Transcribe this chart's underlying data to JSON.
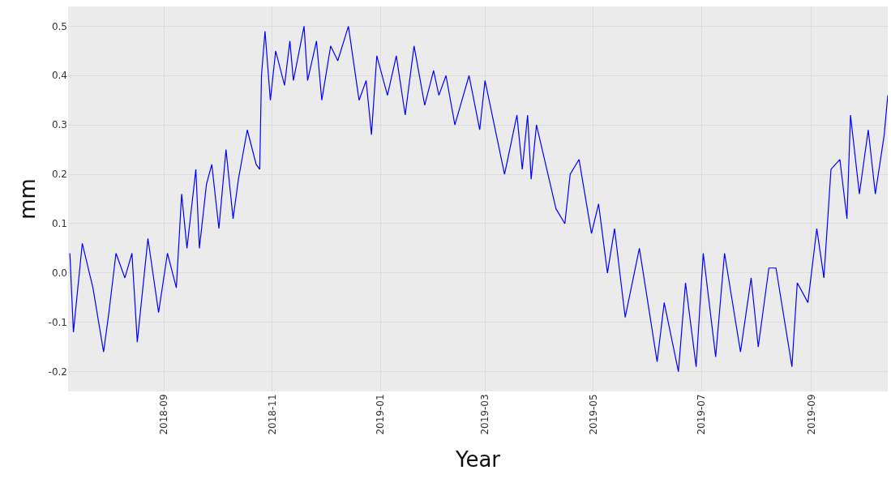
{
  "chart_data": {
    "type": "line",
    "xlabel": "Year",
    "ylabel": "mm",
    "x": [
      "2018-07-10",
      "2018-07-12",
      "2018-07-17",
      "2018-07-23",
      "2018-07-29",
      "2018-08-01",
      "2018-08-05",
      "2018-08-10",
      "2018-08-14",
      "2018-08-17",
      "2018-08-23",
      "2018-08-29",
      "2018-09-03",
      "2018-09-08",
      "2018-09-11",
      "2018-09-14",
      "2018-09-19",
      "2018-09-21",
      "2018-09-25",
      "2018-09-28",
      "2018-10-02",
      "2018-10-06",
      "2018-10-10",
      "2018-10-13",
      "2018-10-18",
      "2018-10-23",
      "2018-10-25",
      "2018-10-26",
      "2018-10-28",
      "2018-10-31",
      "2018-11-03",
      "2018-11-08",
      "2018-11-11",
      "2018-11-13",
      "2018-11-19",
      "2018-11-21",
      "2018-11-26",
      "2018-11-29",
      "2018-12-04",
      "2018-12-08",
      "2018-12-14",
      "2018-12-20",
      "2018-12-24",
      "2018-12-27",
      "2018-12-30",
      "2019-01-05",
      "2019-01-10",
      "2019-01-15",
      "2019-01-20",
      "2019-01-26",
      "2019-01-31",
      "2019-02-03",
      "2019-02-07",
      "2019-02-12",
      "2019-02-20",
      "2019-02-26",
      "2019-03-01",
      "2019-03-12",
      "2019-03-19",
      "2019-03-22",
      "2019-03-25",
      "2019-03-27",
      "2019-03-30",
      "2019-04-10",
      "2019-04-15",
      "2019-04-18",
      "2019-04-23",
      "2019-04-30",
      "2019-05-04",
      "2019-05-09",
      "2019-05-13",
      "2019-05-19",
      "2019-05-27",
      "2019-06-06",
      "2019-06-10",
      "2019-06-18",
      "2019-06-22",
      "2019-06-28",
      "2019-07-02",
      "2019-07-09",
      "2019-07-14",
      "2019-07-23",
      "2019-07-29",
      "2019-08-02",
      "2019-08-08",
      "2019-08-12",
      "2019-08-21",
      "2019-08-24",
      "2019-08-30",
      "2019-09-04",
      "2019-09-08",
      "2019-09-12",
      "2019-09-17",
      "2019-09-21",
      "2019-09-23",
      "2019-09-28",
      "2019-10-03",
      "2019-10-07",
      "2019-10-12",
      "2019-10-14"
    ],
    "series": [
      {
        "color": "#0000ff",
        "values": [
          0.04,
          -0.12,
          0.06,
          -0.03,
          -0.16,
          -0.08,
          0.04,
          -0.01,
          0.04,
          -0.14,
          0.07,
          -0.08,
          0.04,
          -0.03,
          0.16,
          0.05,
          0.21,
          0.05,
          0.18,
          0.22,
          0.09,
          0.25,
          0.11,
          0.19,
          0.29,
          0.22,
          0.21,
          0.4,
          0.49,
          0.35,
          0.45,
          0.38,
          0.47,
          0.39,
          0.5,
          0.39,
          0.47,
          0.35,
          0.46,
          0.43,
          0.5,
          0.35,
          0.39,
          0.28,
          0.44,
          0.36,
          0.44,
          0.32,
          0.46,
          0.34,
          0.41,
          0.36,
          0.4,
          0.3,
          0.4,
          0.29,
          0.39,
          0.2,
          0.32,
          0.21,
          0.32,
          0.19,
          0.3,
          0.13,
          0.1,
          0.2,
          0.23,
          0.08,
          0.14,
          0.0,
          0.09,
          -0.09,
          0.05,
          -0.18,
          -0.06,
          -0.2,
          -0.02,
          -0.19,
          0.04,
          -0.17,
          0.04,
          -0.16,
          -0.01,
          -0.15,
          0.01,
          0.01,
          -0.19,
          -0.02,
          -0.06,
          0.09,
          -0.01,
          0.21,
          0.23,
          0.11,
          0.32,
          0.16,
          0.29,
          0.16,
          0.28,
          0.36
        ]
      }
    ],
    "xlim": [
      "2018-07-09",
      "2019-10-14"
    ],
    "xticks": [
      {
        "value": "2018-09-01",
        "label": "2018-09"
      },
      {
        "value": "2018-11-01",
        "label": "2018-11"
      },
      {
        "value": "2019-01-01",
        "label": "2019-01"
      },
      {
        "value": "2019-03-01",
        "label": "2019-03"
      },
      {
        "value": "2019-05-01",
        "label": "2019-05"
      },
      {
        "value": "2019-07-01",
        "label": "2019-07"
      },
      {
        "value": "2019-09-01",
        "label": "2019-09"
      }
    ],
    "ylim": [
      -0.24,
      0.54
    ],
    "yticks": [
      -0.2,
      -0.1,
      {
        "value": 0,
        "label": "0.0"
      },
      0.1,
      0.2,
      0.3,
      0.4,
      0.5
    ],
    "grid": true,
    "marker": "none",
    "line_style": "solid"
  }
}
